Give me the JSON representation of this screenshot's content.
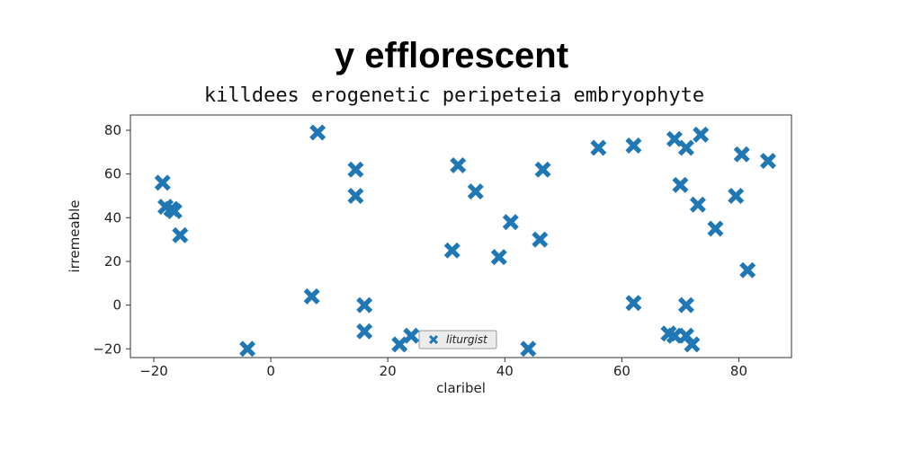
{
  "chart_data": {
    "type": "scatter",
    "title": "y efflorescent",
    "subtitle": "killdees erogenetic peripeteia embryophyte",
    "xlabel": "claribel",
    "ylabel": "irremeable",
    "xlim": [
      -24,
      89
    ],
    "ylim": [
      -24,
      87
    ],
    "x_ticks": [
      -20,
      0,
      20,
      40,
      60,
      80
    ],
    "y_ticks": [
      -20,
      0,
      20,
      40,
      60,
      80
    ],
    "x_tick_labels": [
      "−20",
      "0",
      "20",
      "40",
      "60",
      "80"
    ],
    "y_tick_labels": [
      "−20",
      "0",
      "20",
      "40",
      "60",
      "80"
    ],
    "grid": false,
    "legend_position": "bottom-center",
    "marker": "X",
    "color": "#1f77b4",
    "series": [
      {
        "name": "liturgist",
        "points": [
          [
            -18.5,
            56
          ],
          [
            -18,
            45
          ],
          [
            -17,
            44
          ],
          [
            -16.5,
            43
          ],
          [
            -15.5,
            32
          ],
          [
            -4,
            -20
          ],
          [
            7,
            4
          ],
          [
            8,
            79
          ],
          [
            14.5,
            62
          ],
          [
            14.5,
            50
          ],
          [
            16,
            0
          ],
          [
            16,
            -12
          ],
          [
            22,
            -18
          ],
          [
            24,
            -14
          ],
          [
            31,
            25
          ],
          [
            32,
            64
          ],
          [
            35,
            52
          ],
          [
            39,
            22
          ],
          [
            41,
            38
          ],
          [
            44,
            -20
          ],
          [
            46,
            30
          ],
          [
            46.5,
            62
          ],
          [
            56,
            72
          ],
          [
            62,
            73
          ],
          [
            62,
            1
          ],
          [
            68,
            -13
          ],
          [
            69,
            76
          ],
          [
            69,
            -14
          ],
          [
            70,
            55
          ],
          [
            71,
            72
          ],
          [
            71,
            -14
          ],
          [
            71,
            0
          ],
          [
            72,
            -18
          ],
          [
            73,
            46
          ],
          [
            73.5,
            78
          ],
          [
            76,
            35
          ],
          [
            79.5,
            50
          ],
          [
            80.5,
            69
          ],
          [
            81.5,
            16
          ],
          [
            85,
            66
          ]
        ]
      }
    ]
  }
}
